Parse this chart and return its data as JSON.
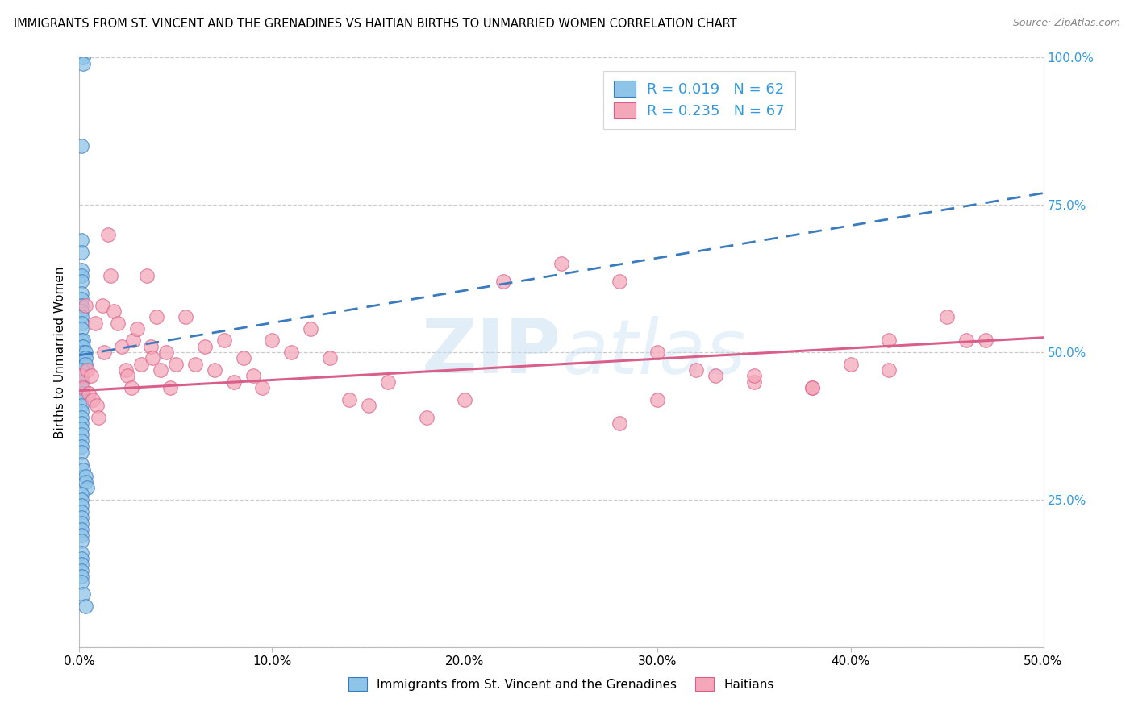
{
  "title": "IMMIGRANTS FROM ST. VINCENT AND THE GRENADINES VS HAITIAN BIRTHS TO UNMARRIED WOMEN CORRELATION CHART",
  "source": "Source: ZipAtlas.com",
  "ylabel": "Births to Unmarried Women",
  "xlim": [
    0,
    0.5
  ],
  "ylim": [
    0,
    1.0
  ],
  "blue_color": "#8ec4e8",
  "pink_color": "#f4a7b9",
  "blue_line_color": "#3a7abf",
  "pink_line_color": "#d95f8a",
  "blue_trend_x": [
    0.0,
    0.5
  ],
  "blue_trend_y": [
    0.495,
    0.77
  ],
  "pink_trend_x": [
    0.0,
    0.5
  ],
  "pink_trend_y": [
    0.435,
    0.525
  ],
  "blue_x": [
    0.002,
    0.002,
    0.001,
    0.001,
    0.001,
    0.001,
    0.001,
    0.001,
    0.001,
    0.001,
    0.001,
    0.001,
    0.001,
    0.001,
    0.001,
    0.001,
    0.001,
    0.002,
    0.002,
    0.002,
    0.002,
    0.002,
    0.003,
    0.003,
    0.003,
    0.001,
    0.001,
    0.001,
    0.001,
    0.001,
    0.001,
    0.001,
    0.001,
    0.001,
    0.001,
    0.001,
    0.001,
    0.001,
    0.001,
    0.001,
    0.001,
    0.002,
    0.003,
    0.003,
    0.004,
    0.001,
    0.001,
    0.001,
    0.001,
    0.001,
    0.001,
    0.001,
    0.001,
    0.001,
    0.001,
    0.001,
    0.001,
    0.001,
    0.001,
    0.001,
    0.002,
    0.003
  ],
  "blue_y": [
    1.0,
    0.99,
    0.85,
    0.69,
    0.67,
    0.64,
    0.63,
    0.62,
    0.6,
    0.59,
    0.58,
    0.57,
    0.56,
    0.55,
    0.54,
    0.52,
    0.51,
    0.52,
    0.51,
    0.5,
    0.49,
    0.48,
    0.5,
    0.49,
    0.48,
    0.47,
    0.46,
    0.45,
    0.44,
    0.43,
    0.42,
    0.41,
    0.4,
    0.39,
    0.38,
    0.37,
    0.36,
    0.35,
    0.34,
    0.33,
    0.31,
    0.3,
    0.29,
    0.28,
    0.27,
    0.26,
    0.25,
    0.24,
    0.23,
    0.22,
    0.21,
    0.2,
    0.19,
    0.18,
    0.16,
    0.15,
    0.14,
    0.13,
    0.12,
    0.11,
    0.09,
    0.07
  ],
  "pink_x": [
    0.001,
    0.002,
    0.003,
    0.004,
    0.005,
    0.006,
    0.007,
    0.008,
    0.009,
    0.01,
    0.012,
    0.013,
    0.015,
    0.016,
    0.018,
    0.02,
    0.022,
    0.024,
    0.025,
    0.027,
    0.028,
    0.03,
    0.032,
    0.035,
    0.037,
    0.038,
    0.04,
    0.042,
    0.045,
    0.047,
    0.05,
    0.055,
    0.06,
    0.065,
    0.07,
    0.075,
    0.08,
    0.085,
    0.09,
    0.095,
    0.1,
    0.11,
    0.12,
    0.13,
    0.14,
    0.15,
    0.16,
    0.18,
    0.2,
    0.22,
    0.25,
    0.28,
    0.3,
    0.32,
    0.35,
    0.38,
    0.4,
    0.42,
    0.45,
    0.47,
    0.3,
    0.35,
    0.28,
    0.33,
    0.38,
    0.42,
    0.46
  ],
  "pink_y": [
    0.46,
    0.44,
    0.58,
    0.47,
    0.43,
    0.46,
    0.42,
    0.55,
    0.41,
    0.39,
    0.58,
    0.5,
    0.7,
    0.63,
    0.57,
    0.55,
    0.51,
    0.47,
    0.46,
    0.44,
    0.52,
    0.54,
    0.48,
    0.63,
    0.51,
    0.49,
    0.56,
    0.47,
    0.5,
    0.44,
    0.48,
    0.56,
    0.48,
    0.51,
    0.47,
    0.52,
    0.45,
    0.49,
    0.46,
    0.44,
    0.52,
    0.5,
    0.54,
    0.49,
    0.42,
    0.41,
    0.45,
    0.39,
    0.42,
    0.62,
    0.65,
    0.62,
    0.5,
    0.47,
    0.45,
    0.44,
    0.48,
    0.52,
    0.56,
    0.52,
    0.42,
    0.46,
    0.38,
    0.46,
    0.44,
    0.47,
    0.52
  ]
}
